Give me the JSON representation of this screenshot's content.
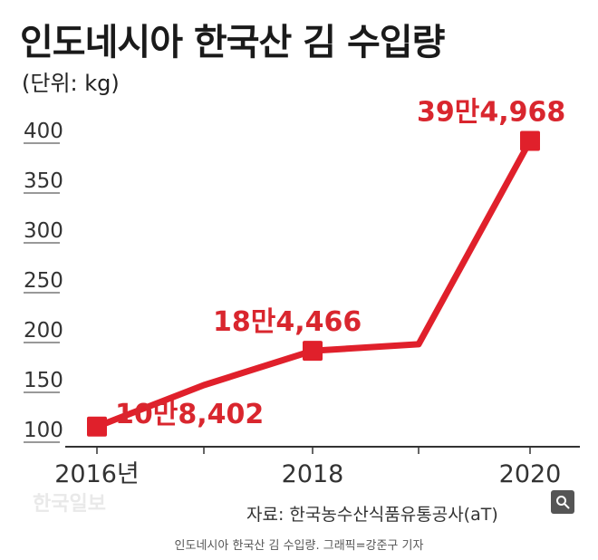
{
  "title": "인도네시아 한국산 김 수입량",
  "unit_label": "(단위: kg)",
  "source": "자료: 한국농수산식품유통공사(aT)",
  "watermark": "한국일보",
  "caption": "인도네시아 한국산 김 수입량. 그래픽=강준구 기자",
  "zoom_icon": "magnifier-icon",
  "colors": {
    "line": "#e0202b",
    "label": "#d9262e",
    "axis": "#333333"
  },
  "chart_data": {
    "type": "line",
    "title": "인도네시아 한국산 김 수입량",
    "ylabel": "(단위: kg)",
    "xlabel": "",
    "x": [
      2016,
      2017,
      2018,
      2019,
      2020
    ],
    "x_ticks": [
      2016,
      2017,
      2018,
      2019,
      2020
    ],
    "x_tick_labels": [
      "2016년",
      "",
      "2018",
      "",
      "2020"
    ],
    "y_unit_note": "y values in thousands of kg (axis ticks labeled 100–400)",
    "y_ticks": [
      100,
      150,
      200,
      250,
      300,
      350,
      400
    ],
    "ylim": [
      100,
      400
    ],
    "series": [
      {
        "values": [
          108.402,
          150,
          184.466,
          191,
          394.968
        ],
        "markers": [
          true,
          false,
          true,
          false,
          true
        ]
      }
    ],
    "data_labels": [
      {
        "x": 2016,
        "text": "10만8,402"
      },
      {
        "x": 2018,
        "text": "18만4,466"
      },
      {
        "x": 2020,
        "text": "39만4,968"
      }
    ],
    "grid": false,
    "legend": "none"
  }
}
